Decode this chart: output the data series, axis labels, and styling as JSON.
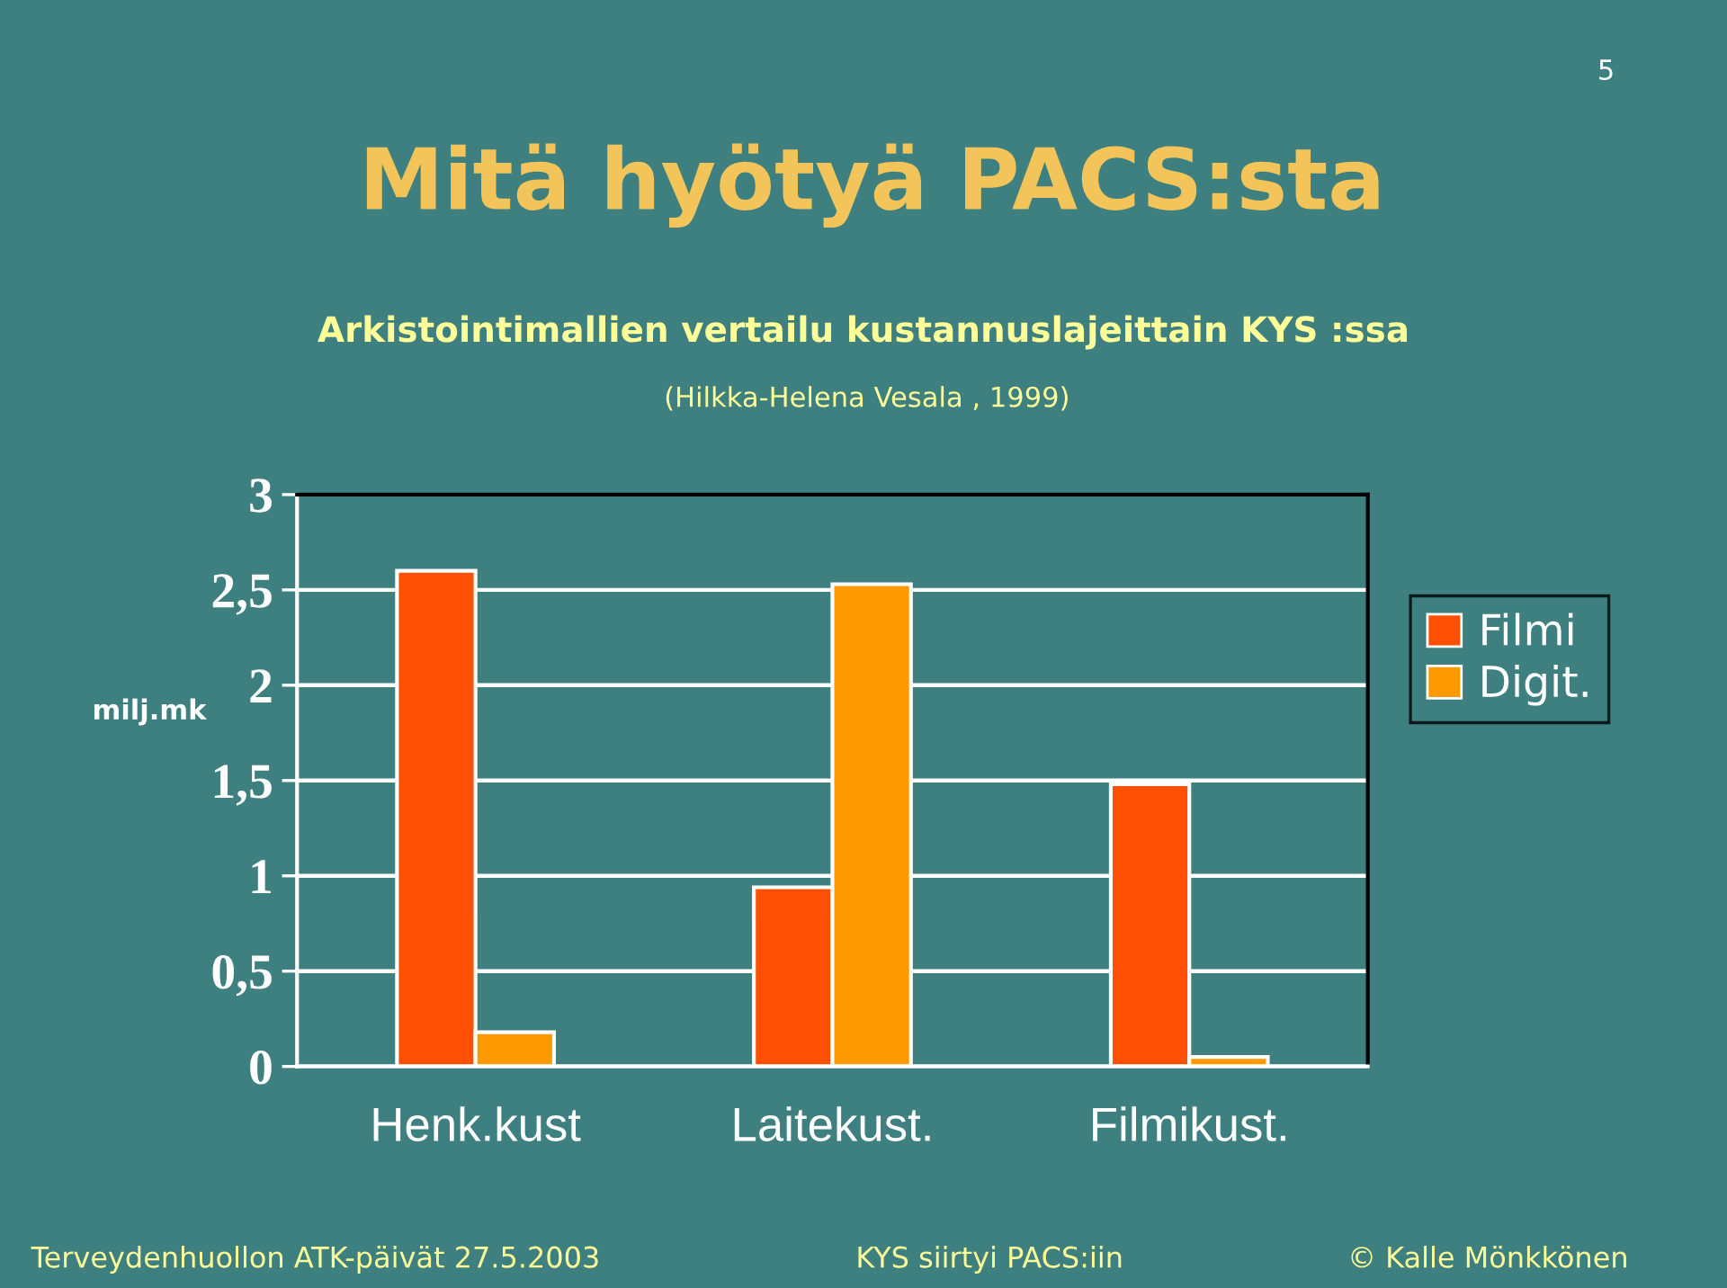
{
  "chart_data": {
    "type": "bar",
    "title": "Mitä hyötyä PACS:sta",
    "subtitle": "Arkistointimallien vertailu kustannuslajeittain KYS :ssa",
    "ylabel": "milj.mk",
    "annotations": [
      "(Hilkka-Helena Vesala , 1999)",
      "5",
      "Terveydenhuollon ATK-päivät 27.5.2003",
      "KYS siirtyi PACS:iin",
      "© Kalle Mönkkönen"
    ],
    "categories": [
      "Henk.kust",
      "Laitekust.",
      "Filmikust."
    ],
    "series": [
      {
        "name": "Filmi",
        "color": "#ff5005",
        "values": [
          2.6,
          0.94,
          1.48
        ]
      },
      {
        "name": "Digit.",
        "color": "#ff9900",
        "values": [
          0.18,
          2.53,
          0.05
        ]
      }
    ],
    "ylim": [
      0,
      3
    ],
    "yticks": [
      0,
      {
        "value": 0.5,
        "label": "0,5"
      },
      1,
      {
        "value": 1.5,
        "label": "1,5"
      },
      2,
      {
        "value": 2.5,
        "label": "2,5"
      },
      3
    ],
    "grid": "y",
    "legend": "right"
  }
}
